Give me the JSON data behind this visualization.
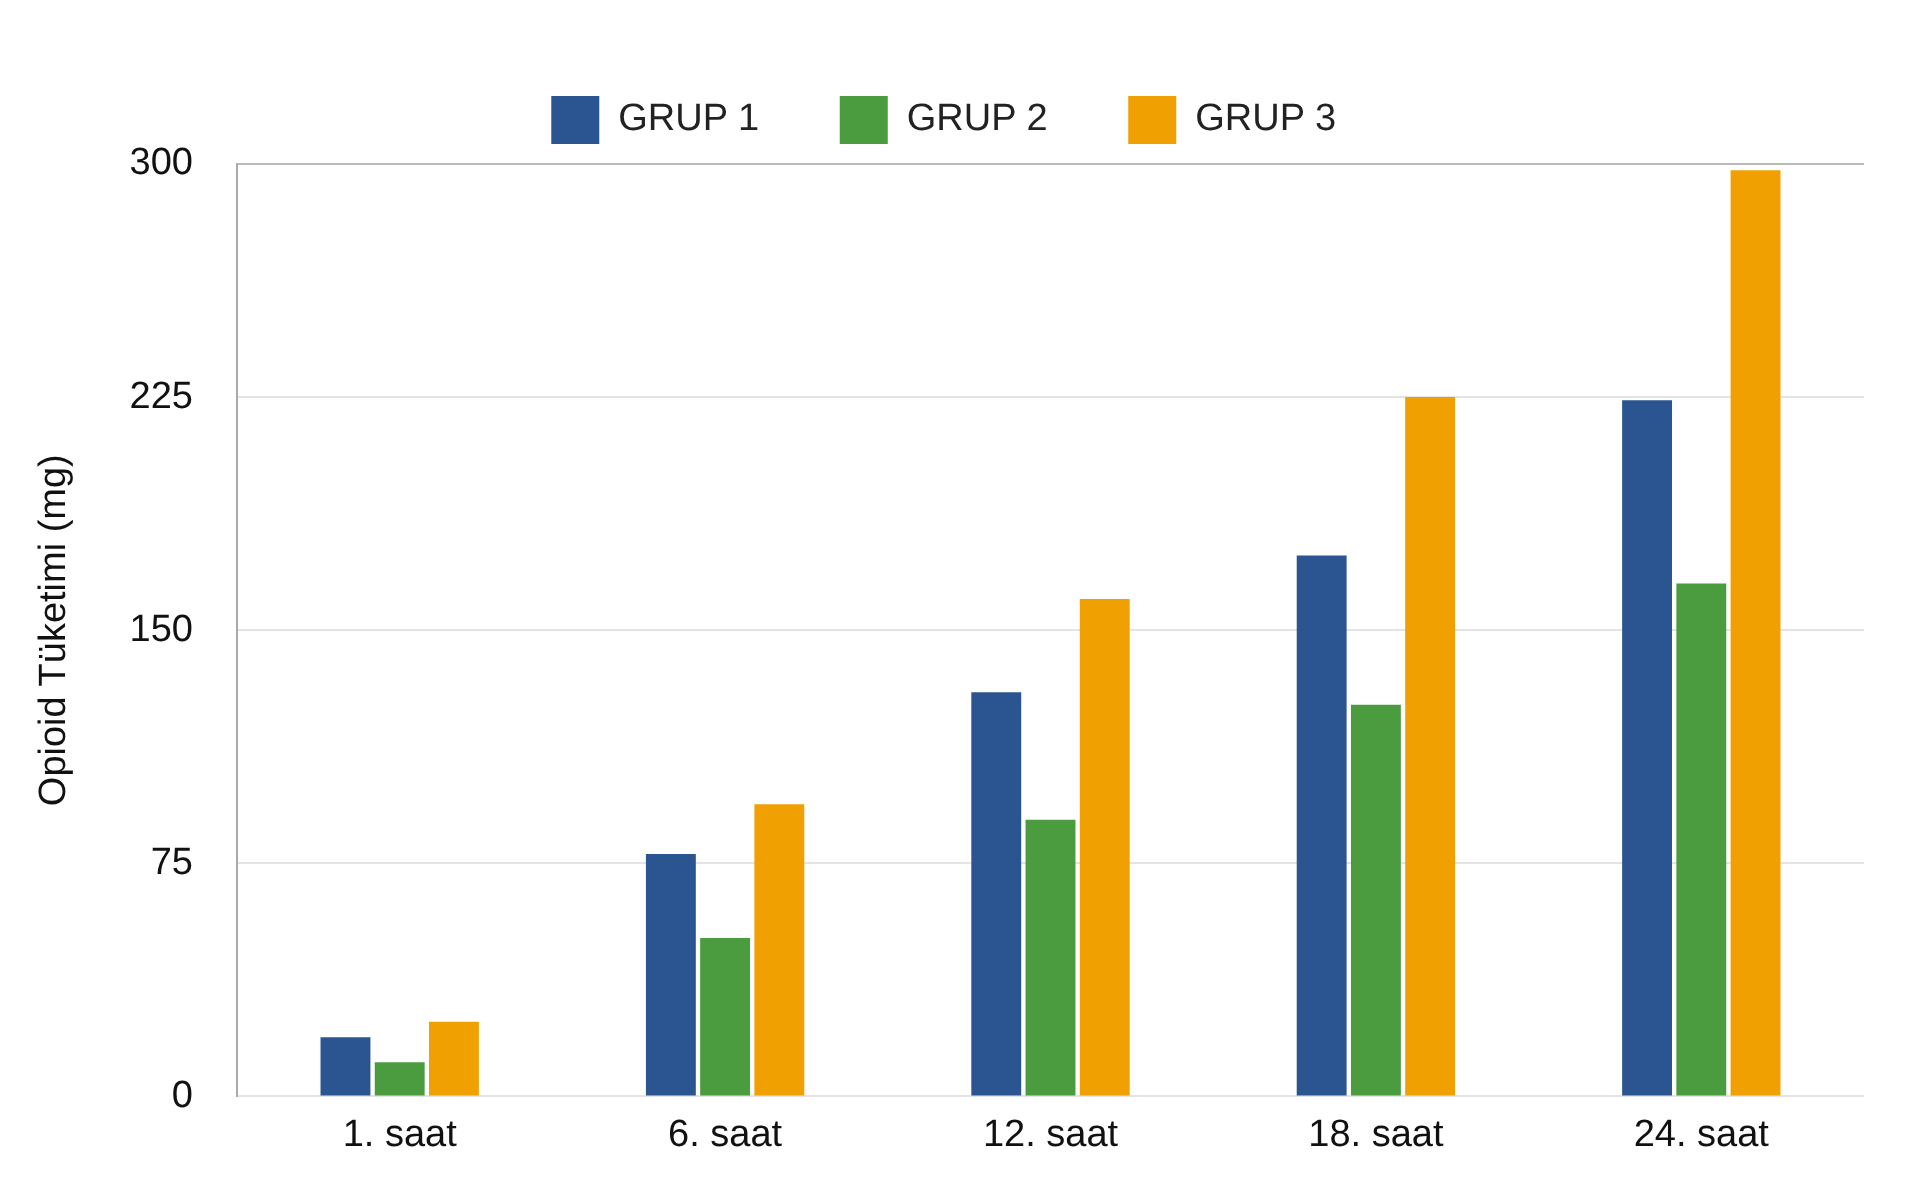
{
  "chart_data": {
    "type": "bar",
    "ylabel": "Opioid Tüketimi (mg)",
    "categories": [
      "1. saat",
      "6. saat",
      "12. saat",
      "18. saat",
      "24. saat"
    ],
    "series": [
      {
        "name": "GRUP 1",
        "color": "#2a5591",
        "values": [
          19,
          78,
          130,
          174,
          224
        ]
      },
      {
        "name": "GRUP 2",
        "color": "#4a9c3f",
        "values": [
          11,
          51,
          89,
          126,
          165
        ]
      },
      {
        "name": "GRUP 3",
        "color": "#f0a000",
        "values": [
          24,
          94,
          160,
          225,
          298
        ]
      }
    ],
    "ylim": [
      0,
      300
    ],
    "yticks": [
      0,
      75,
      150,
      225,
      300
    ],
    "grid": "y",
    "legend": "top"
  }
}
